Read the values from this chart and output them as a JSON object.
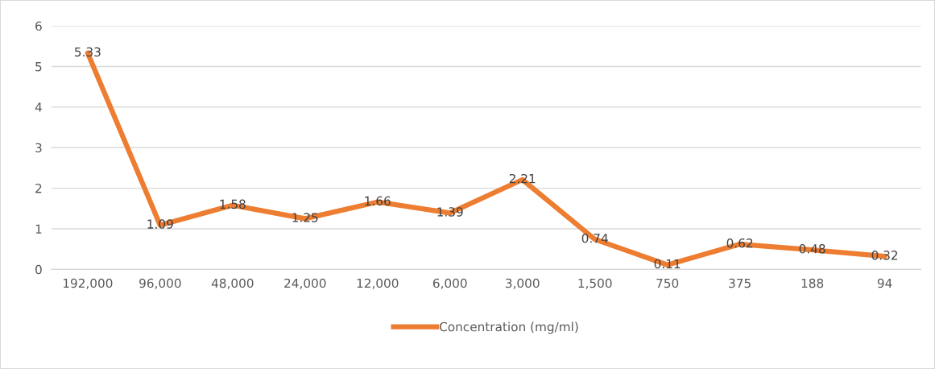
{
  "chart_data": {
    "type": "line",
    "categories": [
      "192,000",
      "96,000",
      "48,000",
      "24,000",
      "12,000",
      "6,000",
      "3,000",
      "1,500",
      "750",
      "375",
      "188",
      "94"
    ],
    "series": [
      {
        "name": "Concentration (mg/ml)",
        "color": "#ed7d31",
        "values": [
          5.33,
          1.09,
          1.58,
          1.25,
          1.66,
          1.39,
          2.21,
          0.74,
          0.11,
          0.62,
          0.48,
          0.32
        ]
      }
    ],
    "ylim": [
      0,
      6
    ],
    "yticks": [
      0,
      1,
      2,
      3,
      4,
      5,
      6
    ],
    "grid": "y",
    "legend": "bottom",
    "data_labels": true,
    "marker": "none",
    "line_style": "solid"
  }
}
